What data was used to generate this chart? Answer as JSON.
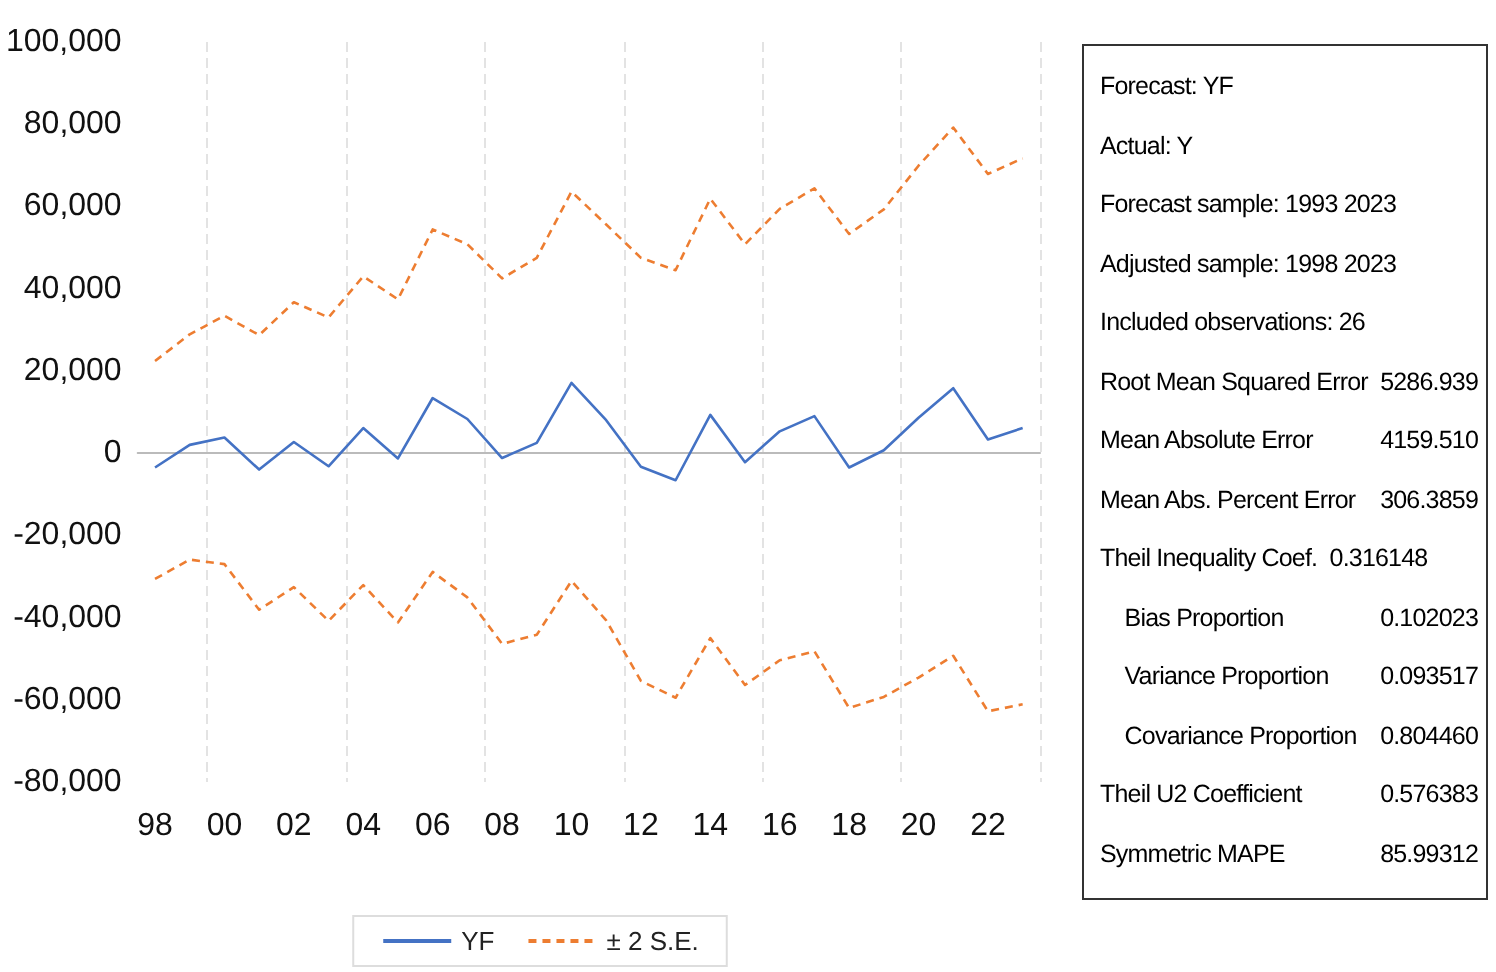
{
  "chart_data": {
    "type": "line",
    "categories": [
      "98",
      null,
      "00",
      null,
      "02",
      null,
      "04",
      null,
      "06",
      null,
      "08",
      null,
      "10",
      null,
      "12",
      null,
      "14",
      null,
      "16",
      null,
      "18",
      null,
      "20",
      null,
      "22",
      null
    ],
    "series": [
      {
        "name": "YF",
        "color": "#4472c4",
        "line_style": "solid",
        "values": [
          -3500,
          2000,
          3800,
          -4000,
          2700,
          -3200,
          6100,
          -1300,
          13400,
          8300,
          -1200,
          2500,
          17100,
          8000,
          -3300,
          -6600,
          9300,
          -2200,
          5300,
          9000,
          -3500,
          700,
          8600,
          15800,
          3300,
          6100
        ]
      },
      {
        "name": "± 2 S.E.",
        "color": "#ed7d31",
        "line_style": "dashed",
        "values": [
          22400,
          28900,
          33400,
          28700,
          36700,
          33000,
          43000,
          37400,
          54400,
          50800,
          42500,
          47500,
          63600,
          55600,
          47500,
          44500,
          61900,
          50800,
          59400,
          64400,
          53300,
          59300,
          69900,
          79200,
          67900,
          71700
        ]
      },
      {
        "color": "#ed7d31",
        "line_style": "dashed",
        "values": [
          -30600,
          -25900,
          -27000,
          -38100,
          -32600,
          -40800,
          -32100,
          -41200,
          -28900,
          -35100,
          -46400,
          -44200,
          -31100,
          -40700,
          -55400,
          -59500,
          -45000,
          -56400,
          -50400,
          -48200,
          -62000,
          -59300,
          -54600,
          -49300,
          -62800,
          -61100
        ]
      }
    ],
    "ylim": [
      -80000,
      100000
    ],
    "yticks": [
      {
        "value": -80000,
        "label": "-80,000"
      },
      {
        "value": -60000,
        "label": "-60,000"
      },
      {
        "value": -40000,
        "label": "-40,000"
      },
      {
        "value": -20000,
        "label": "-20,000"
      },
      0,
      {
        "value": 20000,
        "label": "20,000"
      },
      {
        "value": 40000,
        "label": "40,000"
      },
      {
        "value": 60000,
        "label": "60,000"
      },
      {
        "value": 80000,
        "label": "80,000"
      },
      {
        "value": 100000,
        "label": "100,000"
      }
    ],
    "grid": "x",
    "legend": "bottom",
    "marker": "none",
    "annotations": [
      "Forecast: YF",
      "Actual: Y",
      "Forecast sample: 1993 2023",
      "Adjusted sample: 1998 2023",
      "Included observations: 26",
      "Root Mean Squared Error\t5286.939",
      "Mean Absolute Error\t4159.510",
      "Mean Abs. Percent Error\t306.3859",
      "Theil Inequality Coef.  0.316148",
      "    Bias Proportion\t0.102023",
      "    Variance Proportion\t0.093517",
      "    Covariance Proportion\t0.804460",
      "Theil U2 Coefficient\t0.576383",
      "Symmetric MAPE\t85.99312"
    ]
  }
}
